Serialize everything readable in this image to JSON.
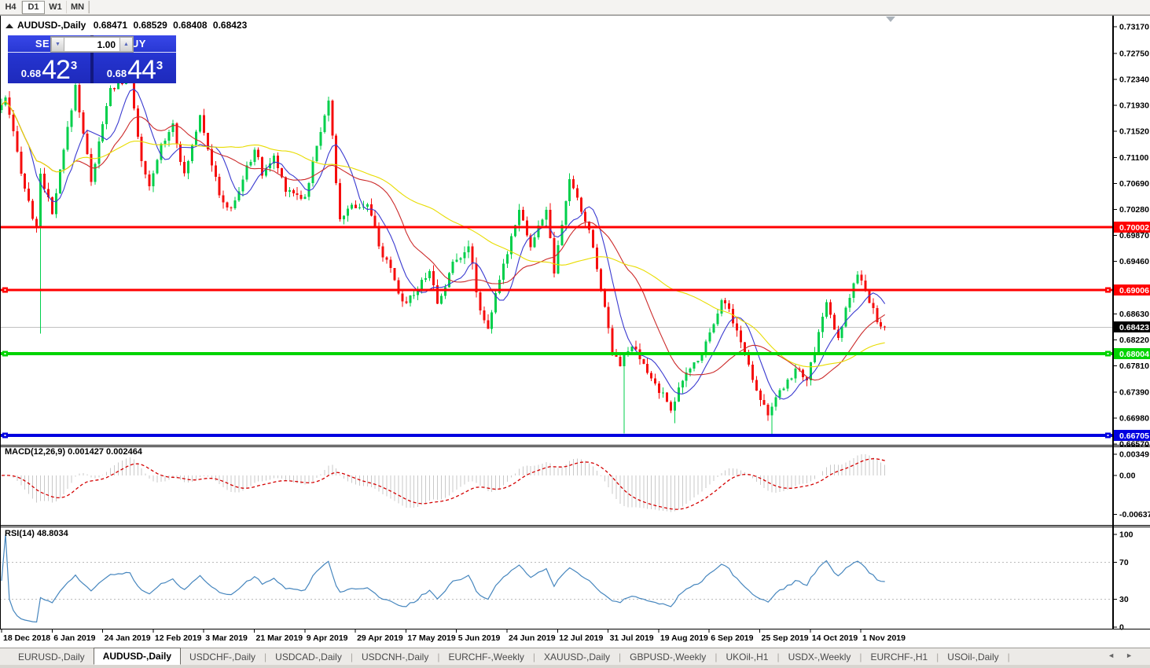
{
  "toolbar": {
    "timeframes": [
      "H4",
      "D1",
      "W1",
      "MN"
    ],
    "active_timeframe": "D1"
  },
  "chart_header": {
    "symbol": "AUDUSD-,Daily",
    "open": "0.68471",
    "high": "0.68529",
    "low": "0.68408",
    "close": "0.68423"
  },
  "trade_panel": {
    "sell_label": "SELL",
    "buy_label": "BUY",
    "volume": "1.00",
    "spin_down_icon": "▼",
    "spin_up_icon": "▲",
    "sell_price": {
      "prefix": "0.68",
      "main": "42",
      "pip": "3"
    },
    "buy_price": {
      "prefix": "0.68",
      "main": "44",
      "pip": "3"
    }
  },
  "tabs": {
    "separator": "|",
    "scroll_left_icon": "◄",
    "scroll_right_icon": "►",
    "active": "AUDUSD-,Daily",
    "items": [
      "EURUSD-,Daily",
      "AUDUSD-,Daily",
      "USDCHF-,Daily",
      "USDCAD-,Daily",
      "USDCNH-,Daily",
      "EURCHF-,Weekly",
      "XAUUSD-,Daily",
      "GBPUSD-,Weekly",
      "UKOil-,H1",
      "USDX-,Weekly",
      "EURCHF-,H1",
      "USOil-,Daily"
    ]
  },
  "chart_data": {
    "type": "candlestick",
    "symbol": "AUDUSD-",
    "timeframe": "Daily",
    "title": "AUDUSD-,Daily",
    "ohlc_display": {
      "open": 0.68471,
      "high": 0.68529,
      "low": 0.68408,
      "close": 0.68423
    },
    "n_candles": 228,
    "seed": 987654321,
    "last_close": 0.68423,
    "bull_color": "#00CF4B",
    "bear_color": "#F50D0D",
    "anchors": [
      [
        0,
        0.7185
      ],
      [
        2,
        0.7202
      ],
      [
        7,
        0.7062
      ],
      [
        10,
        0.6995
      ],
      [
        11,
        0.7088
      ],
      [
        14,
        0.7018
      ],
      [
        20,
        0.7223
      ],
      [
        24,
        0.7075
      ],
      [
        29,
        0.7218
      ],
      [
        34,
        0.7238
      ],
      [
        37,
        0.71
      ],
      [
        39,
        0.706
      ],
      [
        42,
        0.713
      ],
      [
        45,
        0.7165
      ],
      [
        48,
        0.708
      ],
      [
        52,
        0.718
      ],
      [
        57,
        0.7048
      ],
      [
        60,
        0.7026
      ],
      [
        66,
        0.7125
      ],
      [
        68,
        0.7085
      ],
      [
        71,
        0.711
      ],
      [
        74,
        0.7062
      ],
      [
        79,
        0.7046
      ],
      [
        83,
        0.7155
      ],
      [
        85,
        0.7205
      ],
      [
        88,
        0.7008
      ],
      [
        90,
        0.7032
      ],
      [
        95,
        0.7035
      ],
      [
        99,
        0.6955
      ],
      [
        101,
        0.693
      ],
      [
        104,
        0.688
      ],
      [
        108,
        0.6902
      ],
      [
        111,
        0.6935
      ],
      [
        113,
        0.6878
      ],
      [
        117,
        0.6942
      ],
      [
        121,
        0.6972
      ],
      [
        124,
        0.6868
      ],
      [
        126,
        0.6843
      ],
      [
        131,
        0.6962
      ],
      [
        134,
        0.7032
      ],
      [
        137,
        0.6968
      ],
      [
        141,
        0.703
      ],
      [
        143,
        0.6928
      ],
      [
        147,
        0.7078
      ],
      [
        149,
        0.7042
      ],
      [
        152,
        0.6995
      ],
      [
        155,
        0.6905
      ],
      [
        158,
        0.6808
      ],
      [
        160,
        0.6785
      ],
      [
        163,
        0.6812
      ],
      [
        167,
        0.677
      ],
      [
        173,
        0.6715
      ],
      [
        177,
        0.6768
      ],
      [
        181,
        0.6802
      ],
      [
        186,
        0.6885
      ],
      [
        188,
        0.687
      ],
      [
        192,
        0.68
      ],
      [
        195,
        0.6745
      ],
      [
        198,
        0.6705
      ],
      [
        202,
        0.6748
      ],
      [
        205,
        0.6775
      ],
      [
        208,
        0.6762
      ],
      [
        210,
        0.68
      ],
      [
        212,
        0.6862
      ],
      [
        213,
        0.688
      ],
      [
        216,
        0.682
      ],
      [
        219,
        0.6892
      ],
      [
        221,
        0.6925
      ],
      [
        223,
        0.6898
      ],
      [
        225,
        0.6868
      ],
      [
        227,
        0.6842
      ]
    ],
    "spikes": [
      [
        10,
        0.6832
      ],
      [
        160,
        0.6674
      ],
      [
        173,
        0.669
      ],
      [
        198,
        0.6672
      ]
    ],
    "price_axis_ticks": [
      "0.73170",
      "0.72750",
      "0.72340",
      "0.71930",
      "0.71520",
      "0.71100",
      "0.70690",
      "0.70280",
      "0.69870",
      "0.69460",
      "0.68630",
      "0.68220",
      "0.67810",
      "0.67390",
      "0.66980",
      "0.66570"
    ],
    "levels": [
      {
        "price": 0.70002,
        "label": "0.70002",
        "color": "#FF0000",
        "width": 3,
        "handles": false
      },
      {
        "price": 0.69006,
        "label": "0.69006",
        "color": "#FF0000",
        "width": 3,
        "handles": true
      },
      {
        "price": 0.68004,
        "label": "0.68004",
        "color": "#00D400",
        "width": 4,
        "handles": true
      },
      {
        "price": 0.66705,
        "label": "0.66705",
        "color": "#0000E0",
        "width": 4,
        "handles": true
      }
    ],
    "current_price": {
      "price": 0.68423,
      "label": "0.68423",
      "line_color": "#C0C0C0",
      "box_color": "#000000"
    },
    "moving_averages": [
      {
        "period": 8,
        "color": "#3A3AD0"
      },
      {
        "period": 20,
        "color": "#CC2A2A"
      },
      {
        "period": 50,
        "color": "#E8DC00"
      }
    ],
    "macd": {
      "label": "MACD(12,26,9)",
      "value_main": "0.001427",
      "value_signal": "0.002464",
      "fast": 12,
      "slow": 26,
      "signal": 9,
      "axis_ticks": [
        "0.00349",
        "0.00",
        "-0.00637"
      ],
      "hist_color": "#C9C9C9",
      "signal_color": "#D40000"
    },
    "rsi": {
      "label": "RSI(14)",
      "value": "48.8034",
      "period": 14,
      "axis_ticks": [
        "100",
        "70",
        "30",
        "0"
      ],
      "level_lines": [
        70,
        30
      ],
      "color": "#4686BE"
    },
    "date_labels": [
      "18 Dec 2018",
      "6 Jan 2019",
      "24 Jan 2019",
      "12 Feb 2019",
      "3 Mar 2019",
      "21 Mar 2019",
      "9 Apr 2019",
      "29 Apr 2019",
      "17 May 2019",
      "5 Jun 2019",
      "24 Jun 2019",
      "12 Jul 2019",
      "31 Jul 2019",
      "19 Aug 2019",
      "6 Sep 2019",
      "25 Sep 2019",
      "14 Oct 2019",
      "1 Nov 2019"
    ]
  }
}
